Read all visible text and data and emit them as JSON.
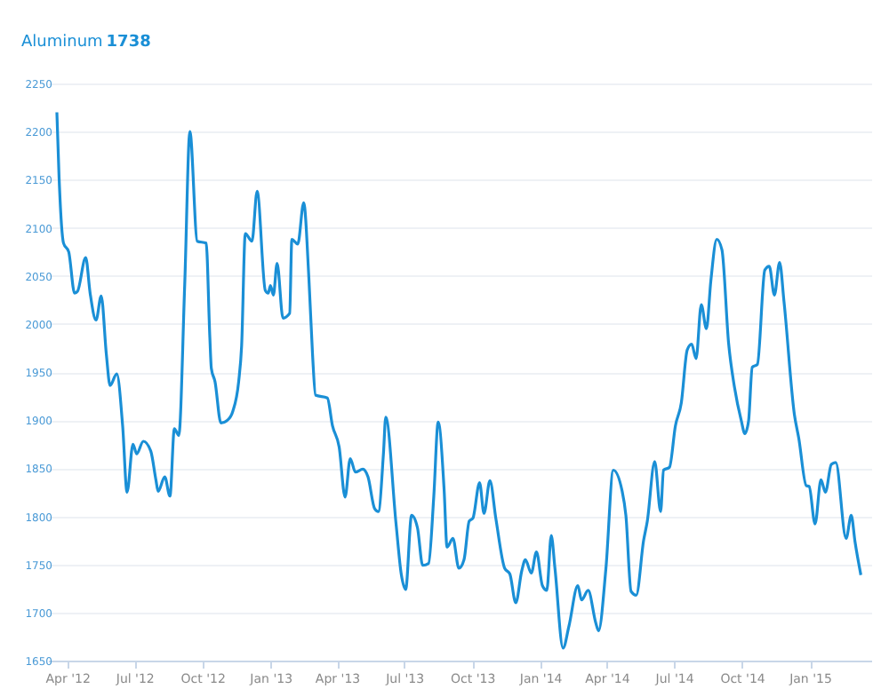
{
  "chart_data": {
    "type": "line",
    "title": "Aluminum",
    "subtitle": "1738",
    "x": [
      "2012-03-18",
      "2012-03-21",
      "2012-03-27",
      "2012-04-03",
      "2012-04-11",
      "2012-04-15",
      "2012-04-26",
      "2012-05-02",
      "2012-05-10",
      "2012-05-17",
      "2012-05-24",
      "2012-05-29",
      "2012-06-07",
      "2012-06-15",
      "2012-06-21",
      "2012-06-29",
      "2012-07-04",
      "2012-07-13",
      "2012-07-23",
      "2012-07-30",
      "2012-08-02",
      "2012-08-11",
      "2012-08-18",
      "2012-08-24",
      "2012-08-30",
      "2012-09-07",
      "2012-09-14",
      "2012-09-24",
      "2012-10-06",
      "2012-10-11",
      "2012-10-13",
      "2012-10-18",
      "2012-10-26",
      "2012-11-04",
      "2012-11-11",
      "2012-11-19",
      "2012-11-23",
      "2012-11-28",
      "2012-12-07",
      "2012-12-14",
      "2012-12-25",
      "2012-12-29",
      "2013-01-01",
      "2013-01-05",
      "2013-01-10",
      "2013-01-18",
      "2013-01-27",
      "2013-01-30",
      "2013-02-07",
      "2013-02-15",
      "2013-02-22",
      "2013-02-27",
      "2013-03-03",
      "2013-03-19",
      "2013-03-26",
      "2013-04-04",
      "2013-04-12",
      "2013-04-19",
      "2013-04-26",
      "2013-05-06",
      "2013-05-13",
      "2013-05-22",
      "2013-05-27",
      "2013-06-03",
      "2013-06-06",
      "2013-06-20",
      "2013-06-27",
      "2013-07-03",
      "2013-07-11",
      "2013-07-19",
      "2013-07-26",
      "2013-08-03",
      "2013-08-10",
      "2013-08-16",
      "2013-08-24",
      "2013-08-28",
      "2013-09-05",
      "2013-09-13",
      "2013-09-20",
      "2013-09-27",
      "2013-10-02",
      "2013-10-11",
      "2013-10-17",
      "2013-10-25",
      "2013-11-02",
      "2013-11-14",
      "2013-11-21",
      "2013-11-29",
      "2013-12-07",
      "2013-12-12",
      "2013-12-20",
      "2013-12-27",
      "2014-01-04",
      "2014-01-10",
      "2014-01-16",
      "2014-01-21",
      "2014-02-01",
      "2014-02-09",
      "2014-02-21",
      "2014-02-26",
      "2014-03-07",
      "2014-03-17",
      "2014-03-21",
      "2014-03-31",
      "2014-04-10",
      "2014-04-22",
      "2014-04-27",
      "2014-05-04",
      "2014-05-11",
      "2014-05-21",
      "2014-05-26",
      "2014-06-05",
      "2014-06-13",
      "2014-06-17",
      "2014-06-25",
      "2014-07-03",
      "2014-07-11",
      "2014-07-19",
      "2014-07-25",
      "2014-07-31",
      "2014-08-07",
      "2014-08-14",
      "2014-08-20",
      "2014-08-28",
      "2014-09-04",
      "2014-09-13",
      "2014-09-21",
      "2014-09-30",
      "2014-10-05",
      "2014-10-10",
      "2014-10-15",
      "2014-10-22",
      "2014-11-01",
      "2014-11-07",
      "2014-11-14",
      "2014-11-21",
      "2014-11-27",
      "2014-12-11",
      "2014-12-17",
      "2014-12-27",
      "2014-12-31",
      "2015-01-08",
      "2015-01-16",
      "2015-01-22",
      "2015-01-30",
      "2015-02-05",
      "2015-02-19",
      "2015-02-26",
      "2015-03-03",
      "2015-03-11"
    ],
    "series": [
      {
        "color": "#1a8fd6",
        "values": [
          2220,
          2152,
          2084,
          2075,
          2032,
          2034,
          2069,
          2032,
          2004,
          2029,
          1968,
          1936,
          1948,
          1894,
          1825,
          1875,
          1865,
          1878,
          1868,
          1838,
          1826,
          1841,
          1821,
          1891,
          1884,
          2041,
          2200,
          2086,
          2084,
          1986,
          1954,
          1940,
          1897,
          1900,
          1909,
          1940,
          1977,
          2094,
          2086,
          2138,
          2035,
          2032,
          2040,
          2030,
          2063,
          2006,
          2011,
          2088,
          2083,
          2126,
          2048,
          1968,
          1926,
          1923,
          1894,
          1872,
          1820,
          1860,
          1846,
          1849,
          1841,
          1808,
          1805,
          1866,
          1903,
          1792,
          1740,
          1724,
          1801,
          1788,
          1749,
          1751,
          1820,
          1898,
          1828,
          1768,
          1777,
          1746,
          1755,
          1795,
          1798,
          1835,
          1803,
          1837,
          1798,
          1746,
          1740,
          1710,
          1743,
          1755,
          1741,
          1763,
          1728,
          1723,
          1780,
          1746,
          1663,
          1686,
          1728,
          1713,
          1723,
          1690,
          1681,
          1746,
          1848,
          1826,
          1801,
          1722,
          1718,
          1775,
          1795,
          1857,
          1805,
          1848,
          1851,
          1894,
          1918,
          1973,
          1979,
          1964,
          2020,
          1995,
          2045,
          2088,
          2077,
          1980,
          1934,
          1900,
          1886,
          1899,
          1955,
          1958,
          2056,
          2060,
          2030,
          2064,
          2023,
          1906,
          1881,
          1832,
          1831,
          1792,
          1838,
          1825,
          1854,
          1856,
          1777,
          1801,
          1774,
          1739
        ]
      }
    ],
    "xlim": [
      "2012-03-06",
      "2015-03-25"
    ],
    "xticks": [
      {
        "value": "2012-04-01",
        "label": "Apr '12"
      },
      {
        "value": "2012-07-01",
        "label": "Jul '12"
      },
      {
        "value": "2012-10-01",
        "label": "Oct '12"
      },
      {
        "value": "2013-01-01",
        "label": "Jan '13"
      },
      {
        "value": "2013-04-01",
        "label": "Apr '13"
      },
      {
        "value": "2013-07-01",
        "label": "Jul '13"
      },
      {
        "value": "2013-10-01",
        "label": "Oct '13"
      },
      {
        "value": "2014-01-01",
        "label": "Jan '14"
      },
      {
        "value": "2014-04-01",
        "label": "Apr '14"
      },
      {
        "value": "2014-07-01",
        "label": "Jul '14"
      },
      {
        "value": "2014-10-01",
        "label": "Oct '14"
      },
      {
        "value": "2015-01-01",
        "label": "Jan '15"
      }
    ],
    "ylim": [
      1650,
      2250
    ],
    "yticks": [
      1650,
      1700,
      1750,
      1800,
      1850,
      1900,
      1950,
      2000,
      2050,
      2100,
      2150,
      2200,
      2250
    ],
    "grid": "y",
    "marker": "none",
    "line_style": "solid"
  }
}
